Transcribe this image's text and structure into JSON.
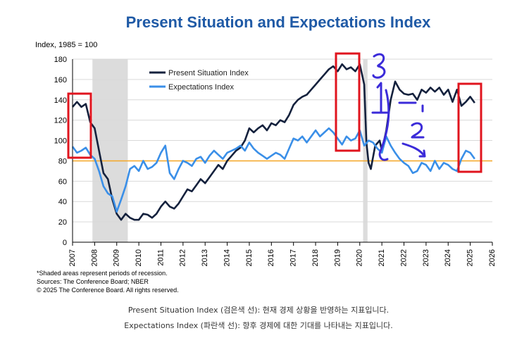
{
  "chart_data": {
    "type": "line",
    "title": "Present Situation and Expectations Index",
    "ylabel": "Index, 1985 = 100",
    "xlabel": "",
    "xlim": [
      2007,
      2026
    ],
    "ylim": [
      0,
      180
    ],
    "x_ticks": [
      "2007",
      "2008",
      "2009",
      "2010",
      "2011",
      "2012",
      "2013",
      "2014",
      "2015",
      "2016",
      "2017",
      "2018",
      "2019",
      "2020",
      "2021",
      "2022",
      "2023",
      "2024",
      "2025",
      "2026"
    ],
    "y_ticks": [
      "0",
      "20",
      "40",
      "60",
      "80",
      "100",
      "120",
      "140",
      "160",
      "180"
    ],
    "grid": "horizontal",
    "legend_position": "top-left",
    "reference_line": {
      "y": 80,
      "color": "#f5a623"
    },
    "recessions": [
      [
        2007.9,
        2009.5
      ],
      [
        2020.15,
        2020.35
      ]
    ],
    "series": [
      {
        "name": "Present Situation Index",
        "color": "#14213d",
        "points": [
          [
            2007.0,
            133
          ],
          [
            2007.2,
            138
          ],
          [
            2007.4,
            133
          ],
          [
            2007.6,
            136
          ],
          [
            2007.8,
            118
          ],
          [
            2008.0,
            112
          ],
          [
            2008.2,
            90
          ],
          [
            2008.4,
            68
          ],
          [
            2008.6,
            62
          ],
          [
            2008.8,
            42
          ],
          [
            2009.0,
            28
          ],
          [
            2009.2,
            22
          ],
          [
            2009.4,
            28
          ],
          [
            2009.6,
            24
          ],
          [
            2009.8,
            22
          ],
          [
            2010.0,
            22
          ],
          [
            2010.2,
            28
          ],
          [
            2010.4,
            27
          ],
          [
            2010.6,
            24
          ],
          [
            2010.8,
            28
          ],
          [
            2011.0,
            35
          ],
          [
            2011.2,
            40
          ],
          [
            2011.4,
            35
          ],
          [
            2011.6,
            33
          ],
          [
            2011.8,
            38
          ],
          [
            2012.0,
            45
          ],
          [
            2012.2,
            52
          ],
          [
            2012.4,
            50
          ],
          [
            2012.6,
            56
          ],
          [
            2012.8,
            62
          ],
          [
            2013.0,
            58
          ],
          [
            2013.2,
            64
          ],
          [
            2013.4,
            70
          ],
          [
            2013.6,
            76
          ],
          [
            2013.8,
            72
          ],
          [
            2014.0,
            80
          ],
          [
            2014.2,
            85
          ],
          [
            2014.4,
            90
          ],
          [
            2014.6,
            93
          ],
          [
            2014.8,
            100
          ],
          [
            2015.0,
            112
          ],
          [
            2015.2,
            108
          ],
          [
            2015.4,
            112
          ],
          [
            2015.6,
            115
          ],
          [
            2015.8,
            110
          ],
          [
            2016.0,
            117
          ],
          [
            2016.2,
            115
          ],
          [
            2016.4,
            120
          ],
          [
            2016.6,
            118
          ],
          [
            2016.8,
            125
          ],
          [
            2017.0,
            135
          ],
          [
            2017.2,
            140
          ],
          [
            2017.4,
            143
          ],
          [
            2017.6,
            145
          ],
          [
            2017.8,
            150
          ],
          [
            2018.0,
            155
          ],
          [
            2018.2,
            160
          ],
          [
            2018.4,
            165
          ],
          [
            2018.6,
            170
          ],
          [
            2018.8,
            173
          ],
          [
            2019.0,
            168
          ],
          [
            2019.2,
            175
          ],
          [
            2019.4,
            170
          ],
          [
            2019.6,
            172
          ],
          [
            2019.8,
            168
          ],
          [
            2020.0,
            175
          ],
          [
            2020.2,
            155
          ],
          [
            2020.3,
            98
          ],
          [
            2020.4,
            78
          ],
          [
            2020.5,
            72
          ],
          [
            2020.7,
            95
          ],
          [
            2020.9,
            100
          ],
          [
            2021.0,
            90
          ],
          [
            2021.2,
            110
          ],
          [
            2021.4,
            140
          ],
          [
            2021.6,
            158
          ],
          [
            2021.8,
            150
          ],
          [
            2022.0,
            146
          ],
          [
            2022.2,
            145
          ],
          [
            2022.4,
            146
          ],
          [
            2022.6,
            140
          ],
          [
            2022.8,
            150
          ],
          [
            2023.0,
            147
          ],
          [
            2023.2,
            152
          ],
          [
            2023.4,
            148
          ],
          [
            2023.6,
            152
          ],
          [
            2023.8,
            145
          ],
          [
            2024.0,
            150
          ],
          [
            2024.2,
            138
          ],
          [
            2024.4,
            150
          ],
          [
            2024.6,
            134
          ],
          [
            2024.8,
            138
          ],
          [
            2025.0,
            143
          ],
          [
            2025.2,
            137
          ]
        ]
      },
      {
        "name": "Expectations Index",
        "color": "#3a8fe8",
        "points": [
          [
            2007.0,
            94
          ],
          [
            2007.2,
            88
          ],
          [
            2007.4,
            90
          ],
          [
            2007.6,
            93
          ],
          [
            2007.8,
            86
          ],
          [
            2008.0,
            82
          ],
          [
            2008.2,
            70
          ],
          [
            2008.4,
            55
          ],
          [
            2008.6,
            48
          ],
          [
            2008.8,
            45
          ],
          [
            2009.0,
            30
          ],
          [
            2009.2,
            42
          ],
          [
            2009.4,
            55
          ],
          [
            2009.6,
            72
          ],
          [
            2009.8,
            75
          ],
          [
            2010.0,
            70
          ],
          [
            2010.2,
            80
          ],
          [
            2010.4,
            72
          ],
          [
            2010.6,
            74
          ],
          [
            2010.8,
            78
          ],
          [
            2011.0,
            88
          ],
          [
            2011.2,
            95
          ],
          [
            2011.4,
            68
          ],
          [
            2011.6,
            62
          ],
          [
            2011.8,
            72
          ],
          [
            2012.0,
            80
          ],
          [
            2012.2,
            78
          ],
          [
            2012.4,
            75
          ],
          [
            2012.6,
            82
          ],
          [
            2012.8,
            84
          ],
          [
            2013.0,
            78
          ],
          [
            2013.2,
            85
          ],
          [
            2013.4,
            90
          ],
          [
            2013.6,
            86
          ],
          [
            2013.8,
            82
          ],
          [
            2014.0,
            88
          ],
          [
            2014.2,
            90
          ],
          [
            2014.4,
            92
          ],
          [
            2014.6,
            95
          ],
          [
            2014.8,
            90
          ],
          [
            2015.0,
            98
          ],
          [
            2015.2,
            92
          ],
          [
            2015.4,
            88
          ],
          [
            2015.6,
            85
          ],
          [
            2015.8,
            82
          ],
          [
            2016.0,
            85
          ],
          [
            2016.2,
            88
          ],
          [
            2016.4,
            86
          ],
          [
            2016.6,
            82
          ],
          [
            2016.8,
            92
          ],
          [
            2017.0,
            102
          ],
          [
            2017.2,
            100
          ],
          [
            2017.4,
            104
          ],
          [
            2017.6,
            98
          ],
          [
            2017.8,
            104
          ],
          [
            2018.0,
            110
          ],
          [
            2018.2,
            104
          ],
          [
            2018.4,
            108
          ],
          [
            2018.6,
            112
          ],
          [
            2018.8,
            108
          ],
          [
            2019.0,
            102
          ],
          [
            2019.2,
            96
          ],
          [
            2019.4,
            104
          ],
          [
            2019.6,
            100
          ],
          [
            2019.8,
            102
          ],
          [
            2020.0,
            110
          ],
          [
            2020.2,
            95
          ],
          [
            2020.4,
            100
          ],
          [
            2020.6,
            98
          ],
          [
            2020.8,
            92
          ],
          [
            2021.0,
            88
          ],
          [
            2021.2,
            104
          ],
          [
            2021.4,
            95
          ],
          [
            2021.6,
            88
          ],
          [
            2021.8,
            82
          ],
          [
            2022.0,
            78
          ],
          [
            2022.2,
            75
          ],
          [
            2022.4,
            68
          ],
          [
            2022.6,
            70
          ],
          [
            2022.8,
            78
          ],
          [
            2023.0,
            76
          ],
          [
            2023.2,
            70
          ],
          [
            2023.4,
            80
          ],
          [
            2023.6,
            72
          ],
          [
            2023.8,
            78
          ],
          [
            2024.0,
            76
          ],
          [
            2024.2,
            72
          ],
          [
            2024.4,
            70
          ],
          [
            2024.6,
            82
          ],
          [
            2024.8,
            90
          ],
          [
            2025.0,
            88
          ],
          [
            2025.2,
            82
          ]
        ]
      }
    ],
    "footnotes": [
      "*Shaded areas represent periods of recession.",
      "Sources: The Conference Board;  NBER",
      "© 2025 The Conference Board. All rights reserved."
    ]
  },
  "captions": {
    "line1": "Present Situation Index (검은색 선): 현재 경제 상황을 반영하는 지표입니다.",
    "line2": "Expectations Index (파란색 선): 향후 경제에 대한 기대를 나타내는 지표입니다."
  },
  "annotations": {
    "stroke_color": "#e0141e",
    "pen_color": "#3b2bd9",
    "handwritten": [
      "3",
      "1",
      "2"
    ]
  }
}
